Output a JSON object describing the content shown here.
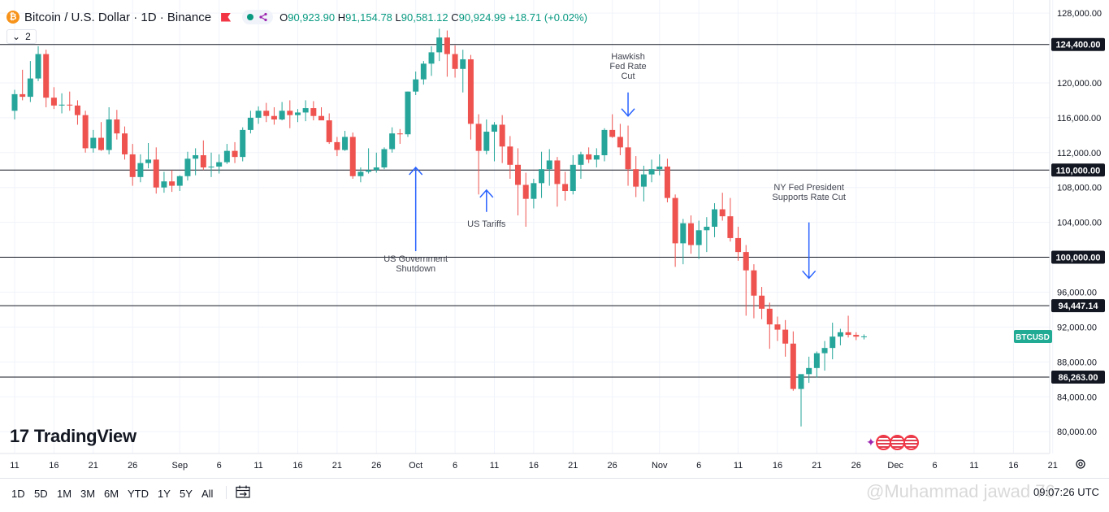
{
  "header": {
    "symbol": "Bitcoin / U.S. Dollar · 1D · Binance",
    "logo_glyph": "₿",
    "ohlc": {
      "o_label": "O",
      "o": "90,923.90",
      "h_label": "H",
      "h": "91,154.78",
      "l_label": "L",
      "l": "90,581.12",
      "c_label": "C",
      "c": "90,924.99",
      "change": "+18.71 (+0.02%)"
    },
    "indicator_count": "2"
  },
  "logo_text": "TradingView",
  "logo_mark": "17",
  "range_buttons": [
    "1D",
    "5D",
    "1M",
    "3M",
    "6M",
    "YTD",
    "1Y",
    "5Y",
    "All"
  ],
  "clock": "09:07:26 UTC",
  "watermark": "@Muhammad jawad 76",
  "colors": {
    "up": "#26a69a",
    "down": "#ef5350",
    "annotation_arrow": "#2962ff",
    "level_line": "#131722",
    "axis_label_bg": "#131722",
    "symbol_tag_bg": "#22ab94"
  },
  "chart_data": {
    "type": "candlestick",
    "title": "Bitcoin / U.S. Dollar · 1D · Binance",
    "y_axis": {
      "ticks": [
        80000,
        84000,
        88000,
        92000,
        96000,
        100000,
        104000,
        108000,
        112000,
        116000,
        120000,
        128000
      ],
      "tick_labels": [
        "80,000.00",
        "84,000.00",
        "88,000.00",
        "92,000.00",
        "96,000.00",
        "100,000.00",
        "104,000.00",
        "108,000.00",
        "112,000.00",
        "116,000.00",
        "120,000.00",
        "128,000.00"
      ],
      "range": [
        77500,
        129500
      ]
    },
    "x_axis": {
      "tick_labels": [
        "11",
        "16",
        "21",
        "26",
        "Sep",
        "6",
        "11",
        "16",
        "21",
        "26",
        "Oct",
        "6",
        "11",
        "16",
        "21",
        "26",
        "Nov",
        "6",
        "11",
        "16",
        "21",
        "26",
        "Dec",
        "6",
        "11",
        "16",
        "21"
      ],
      "tick_days": [
        0,
        5,
        10,
        15,
        21,
        26,
        31,
        36,
        41,
        46,
        51,
        56,
        61,
        66,
        71,
        76,
        82,
        87,
        92,
        97,
        102,
        107,
        112,
        117,
        122,
        127,
        132
      ],
      "start_date": "Aug 11",
      "visible_days": 134
    },
    "levels": [
      {
        "value": 124400,
        "label": "124,400.00"
      },
      {
        "value": 110000,
        "label": "110,000.00"
      },
      {
        "value": 100000,
        "label": "100,000.00"
      },
      {
        "value": 94447.14,
        "label": "94,447.14"
      },
      {
        "value": 86263,
        "label": "86,263.00"
      }
    ],
    "symbol_tag": {
      "label": "BTCUSD",
      "value": 90924.99
    },
    "annotations": [
      {
        "lines": [
          "US Government",
          "Shutdown"
        ],
        "day": 51,
        "direction": "up",
        "arrow_from": 100700,
        "arrow_to": 110300,
        "text_at": 99500
      },
      {
        "lines": [
          "US Tariffs"
        ],
        "day": 60,
        "direction": "up",
        "arrow_from": 105200,
        "arrow_to": 107700,
        "text_at": 103500
      },
      {
        "lines": [
          "Hawkish",
          "Fed Rate",
          "Cut"
        ],
        "day": 78,
        "direction": "down",
        "arrow_from": 118900,
        "arrow_to": 116200,
        "text_at": 122700
      },
      {
        "lines": [
          "NY Fed President",
          "Supports Rate Cut"
        ],
        "day": 101,
        "direction": "down",
        "arrow_from": 104000,
        "arrow_to": 97600,
        "text_at": 107700
      }
    ],
    "candles": [
      [
        116800,
        119200,
        115800,
        118700
      ],
      [
        118700,
        121500,
        118000,
        118400
      ],
      [
        118400,
        122500,
        117800,
        120500
      ],
      [
        120500,
        124200,
        120200,
        123300
      ],
      [
        123300,
        123800,
        117200,
        118300
      ],
      [
        118300,
        119500,
        117000,
        117400
      ],
      [
        117400,
        118800,
        116500,
        117500
      ],
      [
        117500,
        119000,
        116800,
        117400
      ],
      [
        117400,
        118000,
        115200,
        116300
      ],
      [
        116300,
        116800,
        112000,
        112500
      ],
      [
        112500,
        114600,
        112000,
        113700
      ],
      [
        113700,
        115500,
        112200,
        112300
      ],
      [
        112300,
        117200,
        111800,
        115800
      ],
      [
        115800,
        116900,
        113500,
        114200
      ],
      [
        114200,
        115000,
        111200,
        111800
      ],
      [
        111800,
        113000,
        108200,
        109200
      ],
      [
        109200,
        111800,
        108600,
        110800
      ],
      [
        110800,
        113100,
        110200,
        111200
      ],
      [
        111200,
        112600,
        107300,
        108000
      ],
      [
        108000,
        109800,
        107400,
        108700
      ],
      [
        108700,
        110000,
        107500,
        108200
      ],
      [
        108200,
        109400,
        107600,
        109300
      ],
      [
        109300,
        112100,
        108800,
        111300
      ],
      [
        111300,
        112500,
        109400,
        111700
      ],
      [
        111700,
        113400,
        110000,
        110300
      ],
      [
        110300,
        112000,
        109200,
        110400
      ],
      [
        110400,
        111800,
        109600,
        110900
      ],
      [
        110900,
        113000,
        110700,
        112200
      ],
      [
        112200,
        113200,
        110800,
        111500
      ],
      [
        111500,
        114900,
        111000,
        114600
      ],
      [
        114600,
        116800,
        114200,
        116000
      ],
      [
        116000,
        117300,
        115300,
        116800
      ],
      [
        116800,
        117700,
        115500,
        116200
      ],
      [
        116200,
        117200,
        115200,
        115800
      ],
      [
        115800,
        117800,
        115700,
        116800
      ],
      [
        116800,
        118000,
        114800,
        116300
      ],
      [
        116300,
        117000,
        115500,
        116600
      ],
      [
        116600,
        118000,
        115600,
        117100
      ],
      [
        117100,
        117900,
        115700,
        116200
      ],
      [
        116200,
        117200,
        115800,
        115700
      ],
      [
        115700,
        116500,
        113000,
        113200
      ],
      [
        113200,
        113800,
        111600,
        112300
      ],
      [
        112300,
        114500,
        112200,
        113800
      ],
      [
        113800,
        114300,
        109000,
        109300
      ],
      [
        109300,
        110300,
        108600,
        109800
      ],
      [
        109800,
        112500,
        109600,
        110000
      ],
      [
        110000,
        112000,
        109700,
        110300
      ],
      [
        110300,
        112600,
        110100,
        112400
      ],
      [
        112400,
        114900,
        112000,
        114200
      ],
      [
        114200,
        114700,
        113000,
        114100
      ],
      [
        114100,
        119000,
        113800,
        119000
      ],
      [
        119000,
        121300,
        118600,
        120400
      ],
      [
        120400,
        122500,
        119800,
        122200
      ],
      [
        122200,
        124200,
        120800,
        123500
      ],
      [
        123500,
        126200,
        122500,
        125200
      ],
      [
        125200,
        126000,
        120700,
        123300
      ],
      [
        123300,
        124300,
        120600,
        121600
      ],
      [
        121600,
        123800,
        118900,
        122700
      ],
      [
        122700,
        123200,
        113500,
        115300
      ],
      [
        115300,
        116400,
        107200,
        112200
      ],
      [
        112200,
        115800,
        111800,
        114400
      ],
      [
        114400,
        115500,
        111000,
        115200
      ],
      [
        115200,
        116300,
        110800,
        112700
      ],
      [
        112700,
        113900,
        109000,
        110600
      ],
      [
        110600,
        112500,
        104800,
        108300
      ],
      [
        108300,
        109700,
        103500,
        106700
      ],
      [
        106700,
        109000,
        105600,
        108500
      ],
      [
        108500,
        112100,
        106800,
        110100
      ],
      [
        110100,
        112400,
        108200,
        111100
      ],
      [
        111100,
        111500,
        105800,
        108400
      ],
      [
        108400,
        109800,
        106500,
        107600
      ],
      [
        107600,
        111700,
        107200,
        110600
      ],
      [
        110600,
        112100,
        109000,
        111800
      ],
      [
        111800,
        112600,
        110800,
        111200
      ],
      [
        111200,
        112500,
        110300,
        111700
      ],
      [
        111700,
        114800,
        111000,
        114600
      ],
      [
        114600,
        116400,
        113700,
        113800
      ],
      [
        113800,
        115300,
        111700,
        112600
      ],
      [
        112600,
        115100,
        108200,
        110100
      ],
      [
        110100,
        111600,
        106900,
        108100
      ],
      [
        108100,
        110500,
        106400,
        109500
      ],
      [
        109500,
        111200,
        108600,
        110100
      ],
      [
        110100,
        111800,
        109400,
        110400
      ],
      [
        110400,
        111300,
        106300,
        106800
      ],
      [
        106800,
        107200,
        98900,
        101600
      ],
      [
        101600,
        104400,
        99200,
        103900
      ],
      [
        103900,
        104800,
        100400,
        101400
      ],
      [
        101400,
        104200,
        99800,
        103100
      ],
      [
        103100,
        104600,
        100600,
        103500
      ],
      [
        103500,
        106200,
        102300,
        105500
      ],
      [
        105500,
        107400,
        104200,
        104700
      ],
      [
        104700,
        106800,
        101800,
        102200
      ],
      [
        102200,
        103500,
        99600,
        100600
      ],
      [
        100600,
        101400,
        93300,
        98500
      ],
      [
        98500,
        99200,
        93000,
        95600
      ],
      [
        95600,
        96600,
        92900,
        94100
      ],
      [
        94100,
        94800,
        89500,
        92300
      ],
      [
        92300,
        93200,
        90400,
        91700
      ],
      [
        91700,
        92800,
        88600,
        90100
      ],
      [
        90100,
        91500,
        84700,
        84900
      ],
      [
        84900,
        86200,
        80600,
        86600
      ],
      [
        86600,
        88600,
        85600,
        87300
      ],
      [
        87300,
        89200,
        86200,
        89000
      ],
      [
        89000,
        90400,
        87000,
        89600
      ],
      [
        89600,
        92500,
        88300,
        90900
      ],
      [
        90900,
        91800,
        89900,
        91400
      ],
      [
        91400,
        93300,
        90800,
        91100
      ],
      [
        91100,
        91400,
        90500,
        90900
      ],
      [
        90900,
        91155,
        90581,
        90925
      ]
    ]
  }
}
